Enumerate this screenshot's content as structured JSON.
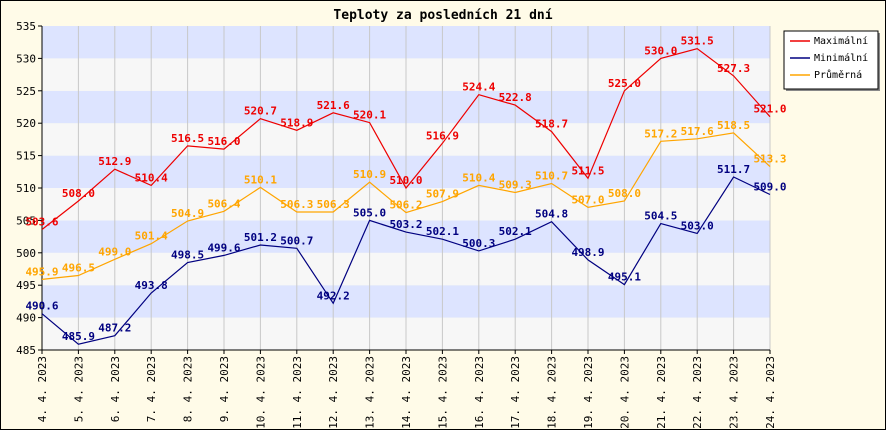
{
  "chart_data": {
    "type": "line",
    "title": "Teploty za posledních 21 dní",
    "xlabel": "",
    "ylabel": "",
    "ylim": [
      485,
      535
    ],
    "yticks": [
      485,
      490,
      495,
      500,
      505,
      510,
      515,
      520,
      525,
      530,
      535
    ],
    "grid": true,
    "legend_position": "top-right",
    "categories": [
      "4. 4. 2023",
      "5. 4. 2023",
      "6. 4. 2023",
      "7. 4. 2023",
      "8. 4. 2023",
      "9. 4. 2023",
      "10. 4. 2023",
      "11. 4. 2023",
      "12. 4. 2023",
      "13. 4. 2023",
      "14. 4. 2023",
      "15. 4. 2023",
      "16. 4. 2023",
      "17. 4. 2023",
      "18. 4. 2023",
      "19. 4. 2023",
      "20. 4. 2023",
      "21. 4. 2023",
      "22. 4. 2023",
      "23. 4. 2023",
      "24. 4. 2023"
    ],
    "series": [
      {
        "name": "Maximální",
        "color": "#ee0000",
        "values": [
          503.6,
          508.0,
          512.9,
          510.4,
          516.5,
          516.0,
          520.7,
          518.9,
          521.6,
          520.1,
          510.0,
          516.9,
          524.4,
          522.8,
          518.7,
          511.5,
          525.0,
          530.0,
          531.5,
          527.3,
          521.0
        ],
        "labels": [
          "503.6",
          "508.0",
          "512.9",
          "510.4",
          "516.5",
          "516.0",
          "520.7",
          "518.9",
          "521.6",
          "520.1",
          "510.0",
          "516.9",
          "524.4",
          "522.8",
          "518.7",
          "511.5",
          "525.0",
          "530.0",
          "531.5",
          "527.3",
          "521.0"
        ]
      },
      {
        "name": "Minimální",
        "color": "#000080",
        "values": [
          490.6,
          485.9,
          487.2,
          493.8,
          498.5,
          499.6,
          501.2,
          500.7,
          492.2,
          505.0,
          503.2,
          502.1,
          500.3,
          502.1,
          504.8,
          498.9,
          495.1,
          504.5,
          503.0,
          511.7,
          509.0
        ],
        "labels": [
          "490.6",
          "485.9",
          "487.2",
          "493.8",
          "498.5",
          "499.6",
          "501.2",
          "500.7",
          "492.2",
          "505.0",
          "503.2",
          "502.1",
          "500.3",
          "502.1",
          "504.8",
          "498.9",
          "495.1",
          "504.5",
          "503.0",
          "511.7",
          "509.0"
        ]
      },
      {
        "name": "Průměrná",
        "color": "#ffa500",
        "values": [
          495.9,
          496.5,
          499.0,
          501.4,
          504.9,
          506.4,
          510.1,
          506.3,
          506.3,
          510.9,
          506.2,
          507.9,
          510.4,
          509.3,
          510.7,
          507.0,
          508.0,
          517.2,
          517.6,
          518.5,
          513.3
        ],
        "labels": [
          "495.9",
          "496.5",
          "499.0",
          "501.4",
          "504.9",
          "506.4",
          "510.1",
          "506.3",
          "506.3",
          "510.9",
          "506.2",
          "507.9",
          "510.4",
          "509.3",
          "510.7",
          "507.0",
          "508.0",
          "517.2",
          "517.6",
          "518.5",
          "513.3"
        ]
      }
    ]
  },
  "colors": {
    "background": "#fffbe8",
    "band_light": "#f7f7f7",
    "band_dark": "#dde4ff"
  }
}
